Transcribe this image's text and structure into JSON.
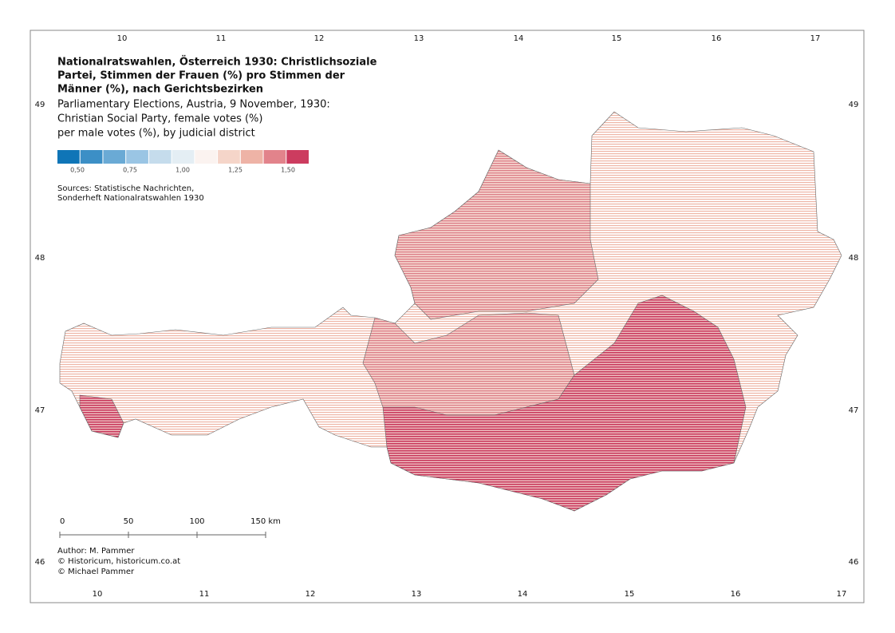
{
  "frame": {
    "top_labels": [
      "10",
      "11",
      "12",
      "13",
      "14",
      "15",
      "16",
      "17"
    ],
    "bottom_labels": [
      "10",
      "11",
      "12",
      "13",
      "14",
      "15",
      "16",
      "17"
    ],
    "left_labels": [
      "49",
      "48",
      "47",
      "46"
    ],
    "right_labels": [
      "49",
      "48",
      "47",
      "46"
    ]
  },
  "title_lines": [
    "Nationalratswahlen, Österreich 1930: Christlichsoziale",
    "Partei, Stimmen der Frauen (%) pro Stimmen der",
    "Männer (%), nach Gerichtsbezirken"
  ],
  "subtitle_lines": [
    "Parliamentary Elections, Austria, 9 November, 1930:",
    "Christian Social Party, female votes (%)",
    "per male votes (%), by judicial district"
  ],
  "legend": {
    "colors": [
      "#0f75b7",
      "#3c8fc6",
      "#6aaad5",
      "#9ac5e4",
      "#c5dcec",
      "#e4eef4",
      "#fbf3f0",
      "#f5d5c9",
      "#eeb3a6",
      "#e2838b",
      "#cc3c5f"
    ],
    "labels": [
      "0,50",
      "0,75",
      "1,00",
      "1,25",
      "1,50"
    ]
  },
  "sources": [
    "Sources: Statistische Nachrichten,",
    "Sonderheft Nationalratswahlen 1930"
  ],
  "scale_labels": [
    "0",
    "50",
    "100",
    "150 km"
  ],
  "credits": [
    "Author: M. Pammer",
    "© Historicum, historicum.co.at",
    "© Michael Pammer"
  ]
}
